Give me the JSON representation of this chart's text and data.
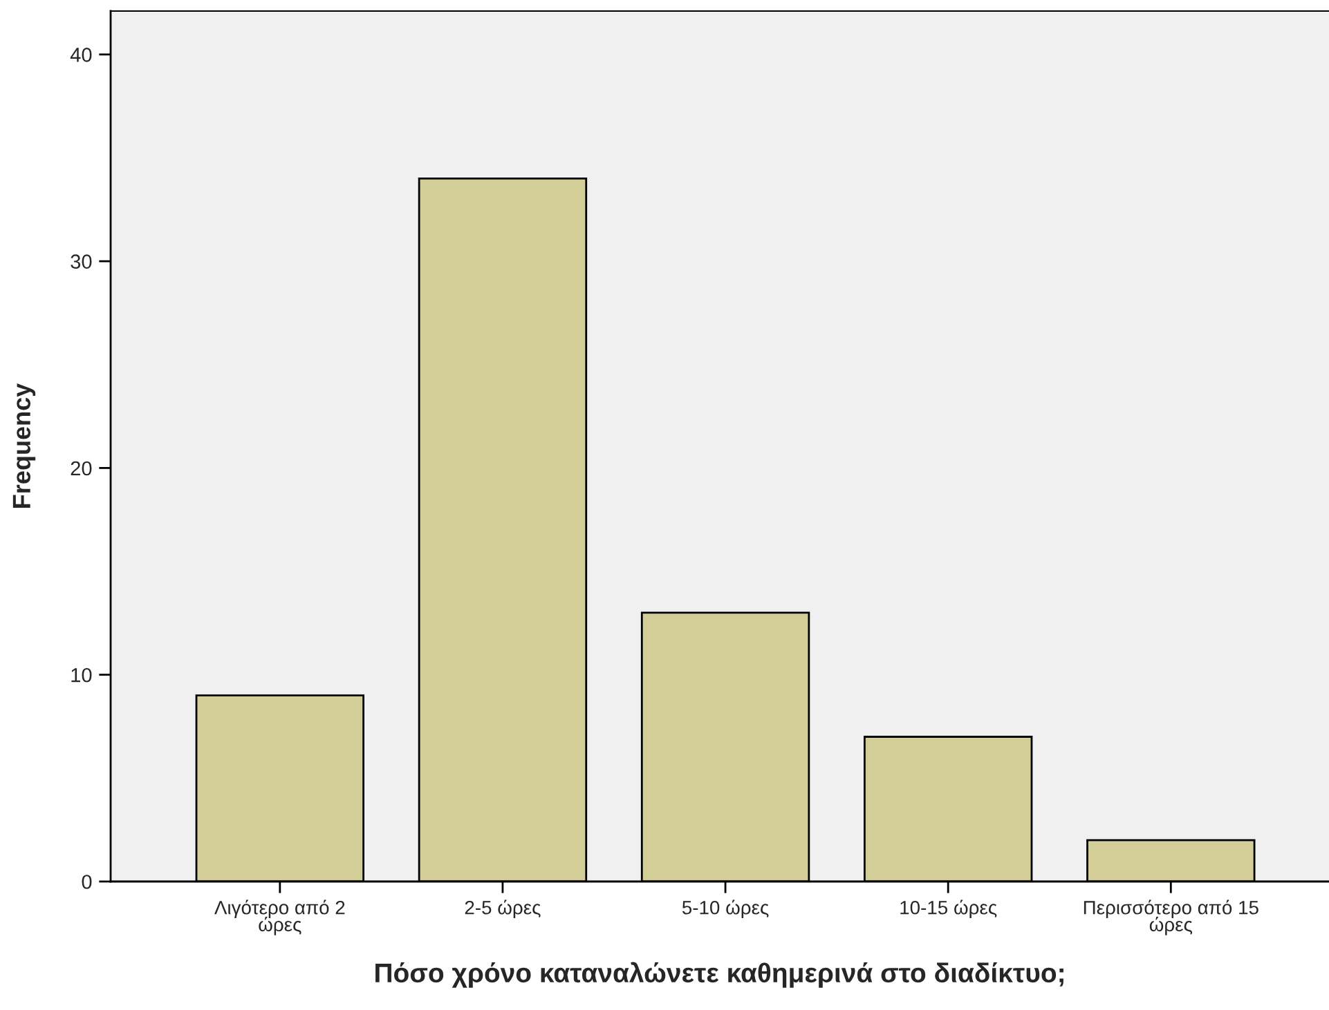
{
  "chart_data": {
    "type": "bar",
    "xlabel": "Πόσο χρόνο καταναλώνετε καθημερινά στο διαδίκτυο;",
    "ylabel": "Frequency",
    "categories": [
      "Λιγότερο από 2\nώρες",
      "2-5 ώρες",
      "5-10 ώρες",
      "10-15 ώρες",
      "Περισσότερο από 15\nώρες"
    ],
    "values": [
      9,
      34,
      13,
      7,
      2
    ],
    "color": "#d3ce98",
    "ylim": [
      0,
      42.1
    ],
    "yticks": [
      0,
      10,
      20,
      30,
      40
    ],
    "grid": false,
    "legend": false
  }
}
